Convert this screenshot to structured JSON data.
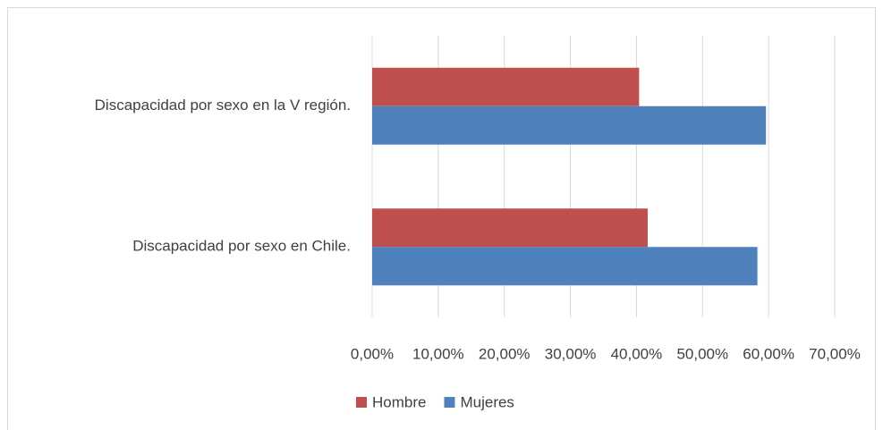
{
  "chart_data": {
    "type": "hbar",
    "categories": [
      "Discapacidad por sexo en  la V región.",
      "Discapacidad por sexo en  Chile."
    ],
    "series": [
      {
        "name": "Hombre",
        "color": "#c0504d",
        "values": [
          40.4,
          41.7
        ]
      },
      {
        "name": "Mujeres",
        "color": "#4f81bd",
        "values": [
          59.6,
          58.3
        ]
      }
    ],
    "xlim": [
      0,
      70
    ],
    "xticks": [
      {
        "value": 0,
        "label": "0,00%"
      },
      {
        "value": 10,
        "label": "10,00%"
      },
      {
        "value": 20,
        "label": "20,00%"
      },
      {
        "value": 30,
        "label": "30,00%"
      },
      {
        "value": 40,
        "label": "40,00%"
      },
      {
        "value": 50,
        "label": "50,00%"
      },
      {
        "value": 60,
        "label": "60,00%"
      },
      {
        "value": 70,
        "label": "70,00%"
      }
    ],
    "grid": true,
    "legend": "bottom"
  }
}
